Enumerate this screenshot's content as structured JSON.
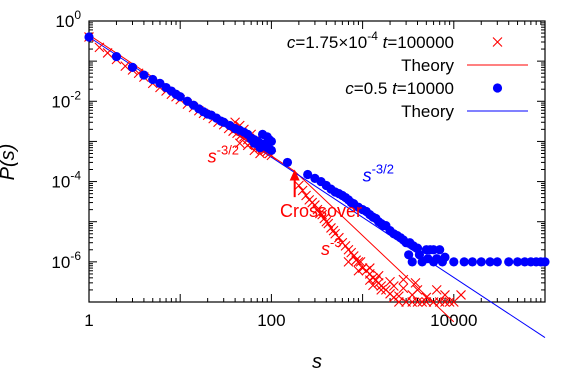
{
  "chart_data": {
    "type": "scatter",
    "xscale": "log",
    "yscale": "log",
    "xlim": [
      1,
      100000
    ],
    "ylim": [
      1e-07,
      1
    ],
    "xlabel": "s",
    "ylabel": "P(s)",
    "x_ticks": [
      {
        "value": 1,
        "label": "1"
      },
      {
        "value": 100,
        "label": "100"
      },
      {
        "value": 10000,
        "label": "10000"
      }
    ],
    "y_ticks": [
      {
        "value": 1,
        "base": "10",
        "exp": "0"
      },
      {
        "value": 0.01,
        "base": "10",
        "exp": "-2"
      },
      {
        "value": 0.0001,
        "base": "10",
        "exp": "-4"
      },
      {
        "value": 1e-06,
        "base": "10",
        "exp": "-6"
      }
    ],
    "legend_position": "top-right",
    "legend": [
      {
        "name_parts": [
          "c",
          "=1.75×10",
          "-4",
          " ",
          "t",
          "=100000"
        ],
        "marker": "cross",
        "color": "#ff0000"
      },
      {
        "name_parts": [
          "Theory"
        ],
        "marker": "line",
        "color": "#ff0000"
      },
      {
        "name_parts": [
          "c",
          "=0.5 ",
          "t",
          "=10000"
        ],
        "marker": "dot",
        "color": "#0000ff"
      },
      {
        "name_parts": [
          "Theory"
        ],
        "marker": "line",
        "color": "#0000ff"
      }
    ],
    "series": [
      {
        "color": "#ff0000",
        "marker": "cross",
        "points": [
          [
            1,
            0.4
          ],
          [
            1.3,
            0.22
          ],
          [
            1.6,
            0.16
          ],
          [
            2,
            0.11
          ],
          [
            2.5,
            0.075
          ],
          [
            3,
            0.06
          ],
          [
            3.5,
            0.05
          ],
          [
            4,
            0.04
          ],
          [
            5,
            0.028
          ],
          [
            6,
            0.022
          ],
          [
            7,
            0.018
          ],
          [
            8,
            0.015
          ],
          [
            9,
            0.013
          ],
          [
            10,
            0.011
          ],
          [
            12,
            0.0085
          ],
          [
            14,
            0.007
          ],
          [
            16,
            0.0058
          ],
          [
            18,
            0.005
          ],
          [
            20,
            0.0045
          ],
          [
            23,
            0.0037
          ],
          [
            26,
            0.003
          ],
          [
            30,
            0.0026
          ],
          [
            34,
            0.0021
          ],
          [
            38,
            0.0018
          ],
          [
            42,
            0.0016
          ],
          [
            46,
            0.0014
          ],
          [
            50,
            0.0013
          ],
          [
            55,
            0.0011
          ],
          [
            60,
            0.00095
          ],
          [
            65,
            0.00085
          ],
          [
            70,
            0.00078
          ],
          [
            75,
            0.0007
          ],
          [
            80,
            0.00065
          ],
          [
            85,
            0.0006
          ],
          [
            90,
            0.00056
          ],
          [
            95,
            0.0005
          ],
          [
            100,
            0.00045
          ],
          [
            40,
            0.003
          ],
          [
            45,
            0.0025
          ],
          [
            50,
            0.002
          ],
          [
            60,
            0.0015
          ],
          [
            70,
            0.0012
          ],
          [
            45,
            0.0009
          ],
          [
            55,
            0.0008
          ],
          [
            65,
            0.0006
          ],
          [
            75,
            0.0005
          ],
          [
            200,
            8e-05
          ],
          [
            220,
            6e-05
          ],
          [
            240,
            4.5e-05
          ],
          [
            260,
            3.5e-05
          ],
          [
            280,
            3e-05
          ],
          [
            300,
            2.6e-05
          ],
          [
            320,
            2e-05
          ],
          [
            340,
            1.6e-05
          ],
          [
            360,
            1.5e-05
          ],
          [
            380,
            1.2e-05
          ],
          [
            400,
            1e-05
          ],
          [
            420,
            9e-06
          ],
          [
            450,
            7e-06
          ],
          [
            480,
            6e-06
          ],
          [
            500,
            5e-06
          ],
          [
            550,
            4e-06
          ],
          [
            600,
            3e-06
          ],
          [
            650,
            2.5e-06
          ],
          [
            700,
            2e-06
          ],
          [
            750,
            1.7e-06
          ],
          [
            800,
            1.4e-06
          ],
          [
            850,
            1.1e-06
          ],
          [
            900,
            1e-06
          ],
          [
            950,
            1e-06
          ],
          [
            1000,
            7e-07
          ],
          [
            1100,
            6e-07
          ],
          [
            1200,
            5e-07
          ],
          [
            1300,
            4e-07
          ],
          [
            1400,
            3.5e-07
          ],
          [
            1500,
            3e-07
          ],
          [
            1600,
            2.5e-07
          ],
          [
            1800,
            2e-07
          ],
          [
            2000,
            1.6e-07
          ],
          [
            2200,
            1.3e-07
          ],
          [
            2500,
            1e-07
          ],
          [
            3000,
            1e-07
          ],
          [
            3500,
            1e-07
          ],
          [
            4000,
            1e-07
          ],
          [
            4500,
            1e-07
          ],
          [
            5000,
            1e-07
          ],
          [
            6000,
            1e-07
          ],
          [
            7000,
            1e-07
          ],
          [
            8000,
            1e-07
          ],
          [
            9000,
            1e-07
          ],
          [
            1600,
            2e-07
          ],
          [
            2500,
            1.4e-07
          ],
          [
            3500,
            1.5e-07
          ],
          [
            5000,
            1.3e-07
          ],
          [
            8000,
            1.5e-07
          ],
          [
            10000,
            1e-07
          ],
          [
            12000,
            1.5e-07
          ],
          [
            1300,
            2.6e-07
          ],
          [
            2800,
            2.2e-07
          ],
          [
            4000,
            2e-07
          ],
          [
            1200,
            3.5e-07
          ],
          [
            2200,
            2.5e-07
          ],
          [
            6500,
            2e-07
          ],
          [
            3800,
            3e-07
          ],
          [
            2000,
            3.2e-07
          ],
          [
            1500,
            4.5e-07
          ],
          [
            2800,
            3.6e-07
          ],
          [
            900,
            6e-07
          ],
          [
            1200,
            7e-07
          ],
          [
            700,
            1e-06
          ]
        ]
      },
      {
        "color": "#0000ff",
        "marker": "dot",
        "points": [
          [
            1,
            0.4
          ],
          [
            2,
            0.13
          ],
          [
            3,
            0.07
          ],
          [
            4,
            0.045
          ],
          [
            5,
            0.035
          ],
          [
            6,
            0.028
          ],
          [
            7,
            0.022
          ],
          [
            8,
            0.018
          ],
          [
            9,
            0.015
          ],
          [
            10,
            0.013
          ],
          [
            12,
            0.01
          ],
          [
            14,
            0.008
          ],
          [
            16,
            0.0065
          ],
          [
            18,
            0.0055
          ],
          [
            20,
            0.0048
          ],
          [
            22,
            0.0045
          ],
          [
            25,
            0.0038
          ],
          [
            28,
            0.0032
          ],
          [
            30,
            0.003
          ],
          [
            35,
            0.0025
          ],
          [
            40,
            0.0021
          ],
          [
            45,
            0.0019
          ],
          [
            50,
            0.0017
          ],
          [
            55,
            0.0015
          ],
          [
            60,
            0.0012
          ],
          [
            65,
            0.0011
          ],
          [
            70,
            0.001
          ],
          [
            75,
            0.0009
          ],
          [
            80,
            0.00085
          ],
          [
            85,
            0.0008
          ],
          [
            90,
            0.0007
          ],
          [
            95,
            0.00065
          ],
          [
            100,
            0.0006
          ],
          [
            80,
            0.0015
          ],
          [
            90,
            0.0013
          ],
          [
            100,
            0.001
          ],
          [
            95,
            0.0011
          ],
          [
            65,
            0.0009
          ],
          [
            75,
            0.0007
          ],
          [
            150,
            0.0003
          ],
          [
            250,
            0.00015
          ],
          [
            300,
            0.00012
          ],
          [
            350,
            0.0001
          ],
          [
            400,
            8e-05
          ],
          [
            450,
            6.5e-05
          ],
          [
            500,
            5.5e-05
          ],
          [
            550,
            5e-05
          ],
          [
            600,
            4.5e-05
          ],
          [
            650,
            4e-05
          ],
          [
            700,
            3.5e-05
          ],
          [
            750,
            3e-05
          ],
          [
            800,
            2.8e-05
          ],
          [
            900,
            2.3e-05
          ],
          [
            1000,
            2e-05
          ],
          [
            1100,
            1.8e-05
          ],
          [
            1200,
            1.5e-05
          ],
          [
            1300,
            1.3e-05
          ],
          [
            1400,
            1.2e-05
          ],
          [
            1500,
            1e-05
          ],
          [
            1600,
            9e-06
          ],
          [
            1700,
            8e-06
          ],
          [
            1800,
            8e-06
          ],
          [
            2000,
            6e-06
          ],
          [
            2200,
            5e-06
          ],
          [
            2400,
            4.5e-06
          ],
          [
            2600,
            4e-06
          ],
          [
            2800,
            3.5e-06
          ],
          [
            3000,
            3e-06
          ],
          [
            3300,
            3e-06
          ],
          [
            3600,
            2.5e-06
          ],
          [
            4000,
            2.2e-06
          ],
          [
            5000,
            2e-06
          ],
          [
            5500,
            2e-06
          ],
          [
            6000,
            2e-06
          ],
          [
            7000,
            2e-06
          ],
          [
            3200,
            1.5e-06
          ],
          [
            4200,
            1.5e-06
          ],
          [
            5200,
            1.2e-06
          ],
          [
            6500,
            1.2e-06
          ],
          [
            8000,
            1.3e-06
          ],
          [
            3500,
            1e-06
          ],
          [
            4500,
            1e-06
          ],
          [
            6000,
            1e-06
          ],
          [
            7500,
            1e-06
          ],
          [
            10000,
            1e-06
          ],
          [
            13000,
            1e-06
          ],
          [
            16000,
            1e-06
          ],
          [
            20000,
            1e-06
          ],
          [
            25000,
            1e-06
          ],
          [
            30000,
            1e-06
          ],
          [
            40000,
            1e-06
          ],
          [
            50000,
            1e-06
          ],
          [
            60000,
            1e-06
          ],
          [
            70000,
            1e-06
          ],
          [
            80000,
            1e-06
          ],
          [
            90000,
            1e-06
          ],
          [
            100000,
            1e-06
          ]
        ]
      }
    ],
    "theory_lines": [
      {
        "color": "#ff0000",
        "points": [
          [
            1,
            0.45
          ],
          [
            180,
            0.00018
          ],
          [
            10000,
            3.2e-08
          ]
        ]
      },
      {
        "color": "#0000ff",
        "points": [
          [
            1,
            0.4
          ],
          [
            100000,
            1.3e-08
          ]
        ]
      }
    ],
    "annotations": [
      {
        "base": "s",
        "exp": "-3/2",
        "color": "#ff0000",
        "at": [
          20,
          0.0003
        ]
      },
      {
        "base": "s",
        "exp": "-3",
        "color": "#ff0000",
        "at": [
          350,
          1.5e-06
        ]
      },
      {
        "base": "s",
        "exp": "-3/2",
        "color": "#0000ff",
        "at": [
          1000,
          0.0001
        ]
      },
      {
        "text": "Crossover",
        "color": "#ff0000",
        "at": [
          350,
          1.3e-05
        ],
        "arrow_to": [
          180,
          0.0002
        ]
      }
    ]
  }
}
